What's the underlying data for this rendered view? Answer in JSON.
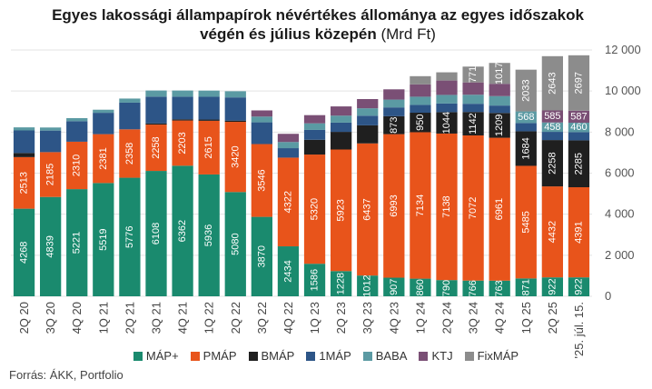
{
  "title": "Egyes lakossági állampapírok névértékes állománya az egyes időszakok végén és július közepén",
  "title_unit": "(Mrd Ft)",
  "source": "Forrás: ÁKK, Portfolio",
  "colors": {
    "MÁP+": "#1a8a6e",
    "PMÁP": "#e8541b",
    "BMÁP": "#1f1f1f",
    "1MÁP": "#2d5587",
    "BABA": "#5b9aa3",
    "KTJ": "#7a4f75",
    "FixMÁP": "#8c8c8c"
  },
  "chart_data": {
    "type": "bar",
    "stacked": true,
    "categories": [
      "2Q 20",
      "3Q 20",
      "4Q 20",
      "1Q 21",
      "2Q 21",
      "3Q 21",
      "4Q 21",
      "1Q 22",
      "2Q 22",
      "3Q 22",
      "4Q 22",
      "1Q 23",
      "2Q 23",
      "3Q 23",
      "4Q 23",
      "1Q 24",
      "2Q 24",
      "3Q 24",
      "4Q 24",
      "1Q 25",
      "2Q 25",
      "'25. júl. 15."
    ],
    "series": [
      {
        "name": "MÁP+",
        "values": [
          4268,
          4839,
          5221,
          5519,
          5776,
          6108,
          6362,
          5936,
          5080,
          3870,
          2434,
          1586,
          1228,
          1012,
          907,
          860,
          790,
          766,
          763,
          871,
          922,
          922
        ]
      },
      {
        "name": "PMÁP",
        "values": [
          2513,
          2185,
          2310,
          2381,
          2358,
          2258,
          2203,
          2615,
          3420,
          3546,
          4322,
          5320,
          5923,
          6437,
          6993,
          7134,
          7138,
          7072,
          6961,
          5485,
          4432,
          4391
        ]
      },
      {
        "name": "BMÁP",
        "values": [
          200,
          0,
          0,
          0,
          0,
          60,
          60,
          60,
          60,
          0,
          0,
          720,
          860,
          880,
          873,
          950,
          1044,
          1142,
          1209,
          1684,
          2258,
          2285
        ]
      },
      {
        "name": "1MÁP",
        "values": [
          1100,
          1050,
          1000,
          1040,
          1300,
          1300,
          1100,
          1110,
          1130,
          1060,
          460,
          480,
          450,
          470,
          430,
          380,
          420,
          400,
          360,
          400,
          400,
          400
        ]
      },
      {
        "name": "BABA",
        "values": [
          150,
          150,
          150,
          150,
          200,
          300,
          300,
          300,
          300,
          280,
          300,
          320,
          340,
          360,
          380,
          400,
          420,
          440,
          460,
          568,
          458,
          460
        ]
      },
      {
        "name": "KTJ",
        "values": [
          0,
          0,
          0,
          0,
          0,
          0,
          0,
          0,
          0,
          300,
          400,
          400,
          450,
          450,
          500,
          600,
          700,
          600,
          600,
          0,
          585,
          587
        ]
      },
      {
        "name": "FixMÁP",
        "values": [
          0,
          0,
          0,
          0,
          0,
          0,
          0,
          0,
          0,
          0,
          0,
          0,
          0,
          0,
          0,
          400,
          400,
          771,
          1017,
          2033,
          2643,
          2697
        ]
      }
    ],
    "labels": {
      "MÁP+": [
        4268,
        4839,
        5221,
        5519,
        5776,
        6108,
        6362,
        5936,
        5080,
        3870,
        2434,
        1586,
        1228,
        1012,
        907,
        860,
        790,
        766,
        763,
        871,
        922,
        922
      ],
      "PMÁP": [
        2513,
        2185,
        2310,
        2381,
        2358,
        2258,
        2203,
        2615,
        3420,
        3546,
        4322,
        5320,
        5923,
        6437,
        6993,
        7134,
        7138,
        7072,
        6961,
        5485,
        4432,
        4391
      ],
      "BMÁP": [
        null,
        null,
        null,
        null,
        null,
        null,
        null,
        null,
        null,
        null,
        null,
        null,
        null,
        null,
        873,
        950,
        1044,
        1142,
        1209,
        1684,
        2258,
        2285
      ],
      "BABA": [
        null,
        null,
        null,
        null,
        null,
        null,
        null,
        null,
        null,
        null,
        null,
        null,
        null,
        null,
        null,
        null,
        null,
        null,
        null,
        568,
        458,
        460
      ],
      "KTJ": [
        null,
        null,
        null,
        null,
        null,
        null,
        null,
        null,
        null,
        null,
        null,
        null,
        null,
        null,
        null,
        null,
        null,
        null,
        null,
        null,
        585,
        587
      ],
      "FixMÁP": [
        null,
        null,
        null,
        null,
        null,
        null,
        null,
        null,
        null,
        null,
        null,
        null,
        null,
        null,
        null,
        null,
        null,
        771,
        1017,
        2033,
        2643,
        2697
      ]
    },
    "y_ticks": [
      "0",
      "2 000",
      "4 000",
      "6 000",
      "8 000",
      "10 000",
      "12 000"
    ],
    "ylim": [
      0,
      12000
    ],
    "y_axis_side": "right",
    "grid": true,
    "legend_position": "bottom"
  }
}
